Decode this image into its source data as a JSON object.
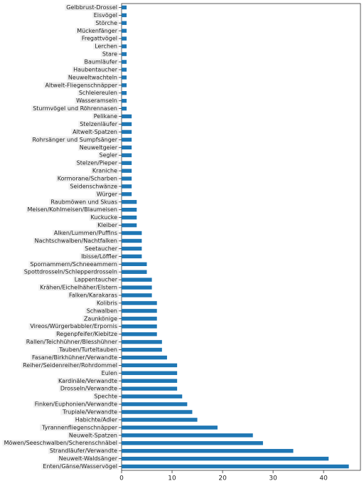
{
  "chart_data": {
    "type": "barh",
    "categories": [
      "Gelbbrust-Drossel",
      "Eisvögel",
      "Störche",
      "Mückenfänger",
      "Fregattvögel",
      "Lerchen",
      "Stare",
      "Baumläufer",
      "Haubentaucher",
      "Neuweltwachteln",
      "Altwelt-Fliegenschnäpper",
      "Schleiereulen",
      "Wasseramseln",
      "Sturmvögel und Röhrennasen",
      "Pelikane",
      "Stelzenläufer",
      "Altwelt-Spatzen",
      "Rohrsänger und Sumpfsänger",
      "Neuweltgeier",
      "Segler",
      "Stelzen/Pieper",
      "Kraniche",
      "Kormorane/Scharben",
      "Seidenschwänze",
      "Würger",
      "Raubmöwen und Skuas",
      "Meisen/Kohlmeisen/Blaumeisen",
      "Kuckucke",
      "Kleiber",
      "Alken/Lummen/Puffins",
      "Nachtschwalben/Nachtfalken",
      "Seetaucher",
      "Ibisse/Löffler",
      "Spornammern/Schneeammern",
      "Spottdrosseln/Schlepperdrosseln",
      "Lappentaucher",
      "Krähen/Eichelhäher/Elstern",
      "Falken/Karakaras",
      "Kolibris",
      "Schwalben",
      "Zaunkönige",
      "Vireos/Würgerbabbler/Erpornis",
      "Regenpfeifer/Kiebitze",
      "Rallen/Teichhühner/Blesshühner",
      "Tauben/Turteltauben",
      "Fasane/Birkhühner/Verwandte",
      "Reiher/Seidenreiher/Rohrdommel",
      "Eulen",
      "Kardinäle/Verwandte",
      "Drosseln/Verwandte",
      "Spechte",
      "Finken/Euphonien/Verwandte",
      "Trupiale/Verwandte",
      "Habichte/Adler",
      "Tyrannenfliegenschnäpper",
      "Neuwelt-Spatzen",
      "Möwen/Seeschwalben/Scherenschnäbel",
      "Strandläufer/Verwandte",
      "Neuwelt-Waldsänger",
      "Enten/Gänse/Wasservögel"
    ],
    "values": [
      1,
      1,
      1,
      1,
      1,
      1,
      1,
      1,
      1,
      1,
      1,
      1,
      1,
      1,
      2,
      2,
      2,
      2,
      2,
      2,
      2,
      2,
      2,
      2,
      2,
      3,
      3,
      3,
      3,
      4,
      4,
      4,
      4,
      5,
      5,
      6,
      6,
      6,
      7,
      7,
      7,
      7,
      7,
      8,
      8,
      9,
      11,
      11,
      11,
      11,
      12,
      13,
      14,
      15,
      19,
      26,
      28,
      34,
      41,
      45
    ],
    "color": "#1f77b4",
    "xlim": [
      0,
      47.3
    ],
    "xticks": [
      0,
      10,
      20,
      30,
      40
    ]
  }
}
